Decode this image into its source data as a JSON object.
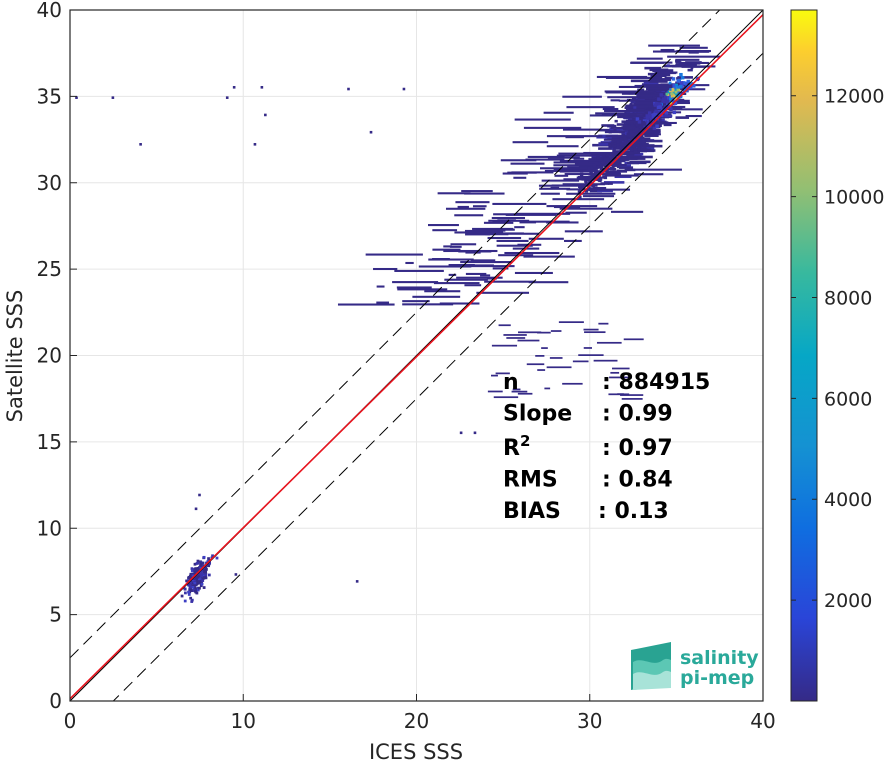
{
  "chart_data": {
    "type": "heatmap",
    "title": "",
    "xlabel": "ICES SSS",
    "ylabel": "Satellite SSS",
    "xlim": [
      0,
      40
    ],
    "ylim": [
      0,
      40
    ],
    "xticks": [
      0,
      10,
      20,
      30,
      40
    ],
    "yticks": [
      0,
      5,
      10,
      15,
      20,
      25,
      30,
      35,
      40
    ],
    "grid": true,
    "colormap": "parula",
    "colorbar": {
      "min": 0,
      "max": 13700,
      "ticks": [
        2000,
        4000,
        6000,
        8000,
        10000,
        12000
      ]
    },
    "reference_lines": [
      {
        "kind": "identity",
        "slope": 1,
        "intercept": 0,
        "color": "#000000",
        "style": "solid"
      },
      {
        "kind": "plus_band",
        "slope": 1,
        "intercept": 2.5,
        "color": "#000000",
        "style": "dashed"
      },
      {
        "kind": "minus_band",
        "slope": 1,
        "intercept": -2.5,
        "color": "#000000",
        "style": "dashed"
      },
      {
        "kind": "regression",
        "slope": 0.99,
        "intercept": 0.13,
        "color": "#e8141e",
        "style": "solid"
      }
    ],
    "density_clusters": [
      {
        "name": "low salinity cluster",
        "x_range": [
          6,
          8.5
        ],
        "y_range": [
          5.5,
          8.5
        ],
        "peak_count": 2000
      },
      {
        "name": "ocean salinity cluster",
        "x_range": [
          25,
          36
        ],
        "y_range": [
          22,
          38
        ],
        "peak_count": 13700,
        "peak_at": [
          35,
          35.2
        ]
      }
    ],
    "stats": [
      {
        "label": "n",
        "value": ": 884915"
      },
      {
        "label": "Slope",
        "value": ": 0.99"
      },
      {
        "label": "R",
        "sup": "2",
        "value": ": 0.97"
      },
      {
        "label": "RMS",
        "value": ": 0.84"
      },
      {
        "label": "BIAS",
        "value": ": 0.13"
      }
    ]
  },
  "logo": {
    "line1": "salinity",
    "line2": "pi-mep",
    "color": "#2aa99a"
  }
}
